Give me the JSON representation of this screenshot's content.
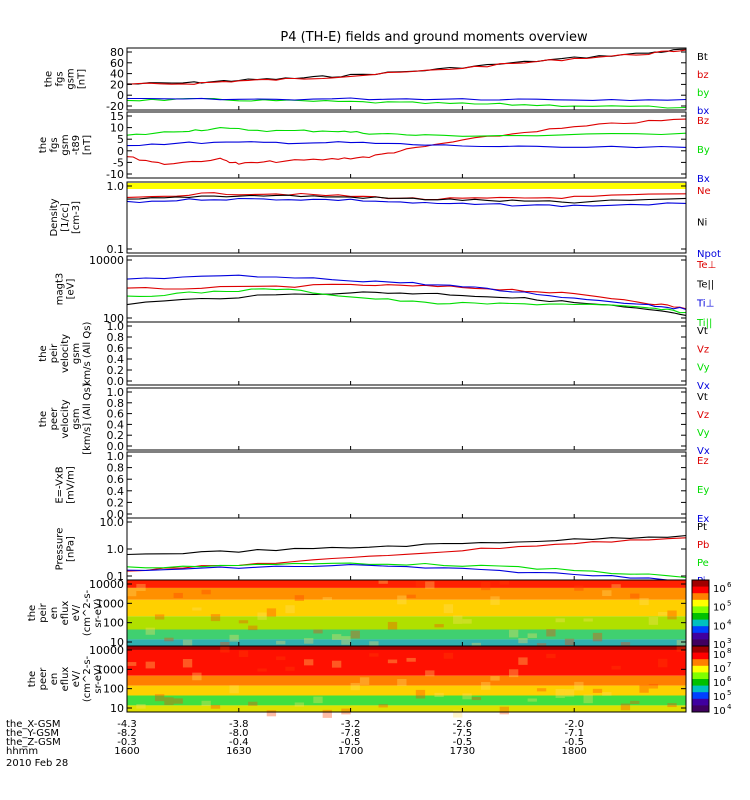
{
  "title": "P4 (TH-E) fields and ground moments overview",
  "colors": {
    "black": "#000000",
    "red": "#dd0000",
    "green": "#00dd00",
    "blue": "#0000dd",
    "yellow": "#ffff00"
  },
  "chart_data": [
    {
      "type": "line",
      "panel": "fgs_gsm",
      "ylabel": [
        "the",
        "fgs",
        "gsm",
        "[nT]"
      ],
      "ylim": [
        -20,
        80
      ],
      "yticks": [
        "80",
        "60",
        "40",
        "20",
        "0",
        "-20"
      ],
      "series": [
        {
          "name": "Bt",
          "color": "black",
          "points": [
            [
              0,
              22
            ],
            [
              18,
              24
            ],
            [
              30,
              28
            ],
            [
              45,
              31
            ],
            [
              60,
              36
            ],
            [
              80,
              44
            ],
            [
              100,
              54
            ],
            [
              120,
              64
            ],
            [
              140,
              72
            ],
            [
              150,
              78
            ]
          ]
        },
        {
          "name": "bz",
          "color": "red",
          "points": [
            [
              0,
              21
            ],
            [
              18,
              23
            ],
            [
              30,
              27
            ],
            [
              45,
              30
            ],
            [
              60,
              35
            ],
            [
              80,
              43
            ],
            [
              100,
              53
            ],
            [
              120,
              63
            ],
            [
              140,
              71
            ],
            [
              150,
              77
            ]
          ]
        },
        {
          "name": "by",
          "color": "green",
          "points": [
            [
              0,
              -4
            ],
            [
              20,
              -3
            ],
            [
              40,
              -5
            ],
            [
              60,
              -7
            ],
            [
              80,
              -9
            ],
            [
              100,
              -11
            ],
            [
              120,
              -13
            ],
            [
              150,
              -16
            ]
          ]
        },
        {
          "name": "bx",
          "color": "blue",
          "points": [
            [
              0,
              -3
            ],
            [
              30,
              -3
            ],
            [
              60,
              -2
            ],
            [
              90,
              -2
            ],
            [
              120,
              -3
            ],
            [
              150,
              -3
            ]
          ]
        }
      ]
    },
    {
      "type": "line",
      "panel": "fgs_dsl",
      "ylabel": [
        "the",
        "fgs",
        "gsm",
        "-t89",
        "[nT]"
      ],
      "ylim": [
        -12,
        16
      ],
      "yticks": [
        "15",
        "10",
        "5",
        "0",
        "-5",
        "-10"
      ],
      "series": [
        {
          "name": "Bz",
          "color": "red",
          "points": [
            [
              0,
              -3
            ],
            [
              10,
              -6
            ],
            [
              25,
              -4
            ],
            [
              30,
              -6
            ],
            [
              40,
              -5
            ],
            [
              55,
              -4
            ],
            [
              65,
              -3
            ],
            [
              75,
              0
            ],
            [
              90,
              4
            ],
            [
              110,
              8
            ],
            [
              130,
              11
            ],
            [
              150,
              13
            ]
          ]
        },
        {
          "name": "By",
          "color": "green",
          "points": [
            [
              0,
              6
            ],
            [
              15,
              8
            ],
            [
              25,
              9
            ],
            [
              40,
              8
            ],
            [
              55,
              8
            ],
            [
              65,
              7
            ],
            [
              80,
              6
            ],
            [
              110,
              6
            ],
            [
              150,
              7
            ]
          ]
        },
        {
          "name": "Bx",
          "color": "blue",
          "points": [
            [
              0,
              2
            ],
            [
              20,
              3
            ],
            [
              40,
              3
            ],
            [
              60,
              3
            ],
            [
              80,
              2
            ],
            [
              110,
              1
            ],
            [
              150,
              1
            ]
          ]
        }
      ]
    },
    {
      "type": "line",
      "panel": "density",
      "ylabel": [
        "Density",
        "[1/cc]",
        "[cm-3]"
      ],
      "scale": "log",
      "ylim": [
        0.1,
        1.3
      ],
      "yticks": [
        "1.0",
        "0.1"
      ],
      "series": [
        {
          "name": "Ne",
          "color": "red",
          "points": [
            [
              0,
              0.72
            ],
            [
              20,
              0.85
            ],
            [
              40,
              0.85
            ],
            [
              60,
              0.78
            ],
            [
              80,
              0.7
            ],
            [
              100,
              0.72
            ],
            [
              120,
              0.75
            ],
            [
              150,
              0.85
            ]
          ]
        },
        {
          "name": "Ni",
          "color": "black",
          "points": [
            [
              0,
              0.68
            ],
            [
              20,
              0.78
            ],
            [
              40,
              0.8
            ],
            [
              60,
              0.75
            ],
            [
              80,
              0.7
            ],
            [
              100,
              0.66
            ],
            [
              120,
              0.62
            ],
            [
              150,
              0.72
            ]
          ]
        },
        {
          "name": "Npot",
          "color": "blue",
          "points": [
            [
              0,
              0.62
            ],
            [
              20,
              0.7
            ],
            [
              40,
              0.7
            ],
            [
              60,
              0.68
            ],
            [
              80,
              0.6
            ],
            [
              100,
              0.57
            ],
            [
              120,
              0.55
            ],
            [
              150,
              0.6
            ]
          ]
        }
      ]
    },
    {
      "type": "line",
      "panel": "temperature",
      "ylabel": [
        "magt3",
        "[eV]"
      ],
      "scale": "log",
      "ylim": [
        80,
        10000
      ],
      "yticks": [
        "10000",
        "100"
      ],
      "series": [
        {
          "name": "Te⊥",
          "color": "red",
          "points": [
            [
              0,
              900
            ],
            [
              30,
              1000
            ],
            [
              60,
              1200
            ],
            [
              80,
              1100
            ],
            [
              100,
              900
            ],
            [
              120,
              600
            ],
            [
              140,
              320
            ],
            [
              150,
              210
            ]
          ]
        },
        {
          "name": "Te||",
          "color": "black",
          "points": [
            [
              0,
              300
            ],
            [
              30,
              500
            ],
            [
              60,
              700
            ],
            [
              80,
              650
            ],
            [
              100,
              500
            ],
            [
              120,
              330
            ],
            [
              140,
              190
            ],
            [
              150,
              130
            ]
          ]
        },
        {
          "name": "Ti⊥",
          "color": "blue",
          "points": [
            [
              0,
              1800
            ],
            [
              30,
              2300
            ],
            [
              60,
              1700
            ],
            [
              80,
              1300
            ],
            [
              100,
              800
            ],
            [
              120,
              450
            ],
            [
              140,
              280
            ],
            [
              150,
              200
            ]
          ]
        },
        {
          "name": "Ti||",
          "color": "green",
          "points": [
            [
              0,
              500
            ],
            [
              20,
              700
            ],
            [
              40,
              900
            ],
            [
              60,
              500
            ],
            [
              80,
              320
            ],
            [
              100,
              300
            ],
            [
              120,
              300
            ],
            [
              140,
              220
            ],
            [
              150,
              160
            ]
          ]
        }
      ]
    },
    {
      "type": "line",
      "panel": "peir_velocity",
      "ylabel": [
        "the",
        "peir",
        "velocity",
        "gsm",
        "km/s (All Qs)"
      ],
      "ylim": [
        0,
        1
      ],
      "yticks": [
        "1.0",
        "0.8",
        "0.6",
        "0.4",
        "0.2",
        "0.0"
      ],
      "series": [
        {
          "name": "Vt",
          "color": "black",
          "points": []
        },
        {
          "name": "Vz",
          "color": "red",
          "points": []
        },
        {
          "name": "Vy",
          "color": "green",
          "points": []
        },
        {
          "name": "Vx",
          "color": "blue",
          "points": []
        }
      ]
    },
    {
      "type": "line",
      "panel": "peer_velocity",
      "ylabel": [
        "the",
        "peer",
        "velocity",
        "gsm",
        "[km/s] (All Qs)"
      ],
      "ylim": [
        0,
        1
      ],
      "yticks": [
        "1.0",
        "0.8",
        "0.6",
        "0.4",
        "0.2",
        "0.0"
      ],
      "series": [
        {
          "name": "Vt",
          "color": "black",
          "points": []
        },
        {
          "name": "Vz",
          "color": "red",
          "points": []
        },
        {
          "name": "Vy",
          "color": "green",
          "points": []
        },
        {
          "name": "Vx",
          "color": "blue",
          "points": []
        }
      ]
    },
    {
      "type": "line",
      "panel": "efield",
      "ylabel": [
        "E=-VxB",
        "[mV/m]"
      ],
      "ylim": [
        0,
        1
      ],
      "yticks": [
        "1.0",
        "0.8",
        "0.6",
        "0.4",
        "0.2",
        "0.0"
      ],
      "series": [
        {
          "name": "Ez",
          "color": "red",
          "points": []
        },
        {
          "name": "Ey",
          "color": "green",
          "points": []
        },
        {
          "name": "Ex",
          "color": "blue",
          "points": []
        }
      ]
    },
    {
      "type": "line",
      "panel": "pressure",
      "ylabel": [
        "Pressure",
        "[nPa]"
      ],
      "scale": "log",
      "ylim": [
        0.1,
        10
      ],
      "yticks": [
        "10.0",
        "1.0",
        "0.1"
      ],
      "series": [
        {
          "name": "Pt",
          "color": "black",
          "points": [
            [
              0,
              0.65
            ],
            [
              30,
              0.85
            ],
            [
              60,
              1.1
            ],
            [
              90,
              1.5
            ],
            [
              120,
              2.0
            ],
            [
              150,
              2.7
            ]
          ]
        },
        {
          "name": "Pb",
          "color": "red",
          "points": [
            [
              0,
              0.2
            ],
            [
              30,
              0.3
            ],
            [
              60,
              0.5
            ],
            [
              90,
              0.9
            ],
            [
              120,
              1.5
            ],
            [
              150,
              2.3
            ]
          ]
        },
        {
          "name": "Pe",
          "color": "green",
          "points": [
            [
              0,
              0.25
            ],
            [
              30,
              0.3
            ],
            [
              60,
              0.35
            ],
            [
              90,
              0.3
            ],
            [
              120,
              0.2
            ],
            [
              150,
              0.12
            ]
          ]
        },
        {
          "name": "Pi",
          "color": "blue",
          "points": [
            [
              0,
              0.2
            ],
            [
              30,
              0.25
            ],
            [
              60,
              0.3
            ],
            [
              90,
              0.22
            ],
            [
              120,
              0.15
            ],
            [
              150,
              0.1
            ]
          ]
        }
      ]
    },
    {
      "type": "heatmap",
      "panel": "peir_eflux",
      "ylabel": [
        "the",
        "peir",
        "en",
        "eflux",
        "eV/",
        "(cm^2-s-",
        "sr-eV)"
      ],
      "scale": "log",
      "ylim": [
        7,
        20000
      ],
      "yticks": [
        "10000",
        "1000",
        "100",
        "10"
      ],
      "colorbar": {
        "ticks": [
          "10",
          "10",
          "10",
          "10"
        ],
        "exponents": [
          "6",
          "5",
          "4",
          "3"
        ]
      }
    },
    {
      "type": "heatmap",
      "panel": "peer_eflux",
      "ylabel": [
        "the",
        "peer",
        "en",
        "eflux",
        "eV/",
        "(cm^2-s-",
        "sr-eV)"
      ],
      "scale": "log",
      "ylim": [
        7,
        20000
      ],
      "yticks": [
        "10000",
        "1000",
        "100",
        "10"
      ],
      "colorbar": {
        "ticks": [
          "10",
          "10",
          "10",
          "10",
          "10"
        ],
        "exponents": [
          "8",
          "7",
          "6",
          "5",
          "4"
        ]
      }
    }
  ],
  "xaxis": {
    "tick_minutes": [
      0,
      30,
      60,
      90,
      120
    ],
    "rows": [
      {
        "label": "the_X-GSM",
        "values": [
          "-4.3",
          "-3.8",
          "-3.2",
          "-2.6",
          "-2.0"
        ]
      },
      {
        "label": "the_Y-GSM",
        "values": [
          "-8.2",
          "-8.0",
          "-7.8",
          "-7.5",
          "-7.1"
        ]
      },
      {
        "label": "the_Z-GSM",
        "values": [
          "-0.3",
          "-0.4",
          "-0.5",
          "-0.5",
          "-0.5"
        ]
      },
      {
        "label": "hhmm",
        "values": [
          "1600",
          "1630",
          "1700",
          "1730",
          "1800"
        ]
      }
    ],
    "date": "2010 Feb 28"
  }
}
